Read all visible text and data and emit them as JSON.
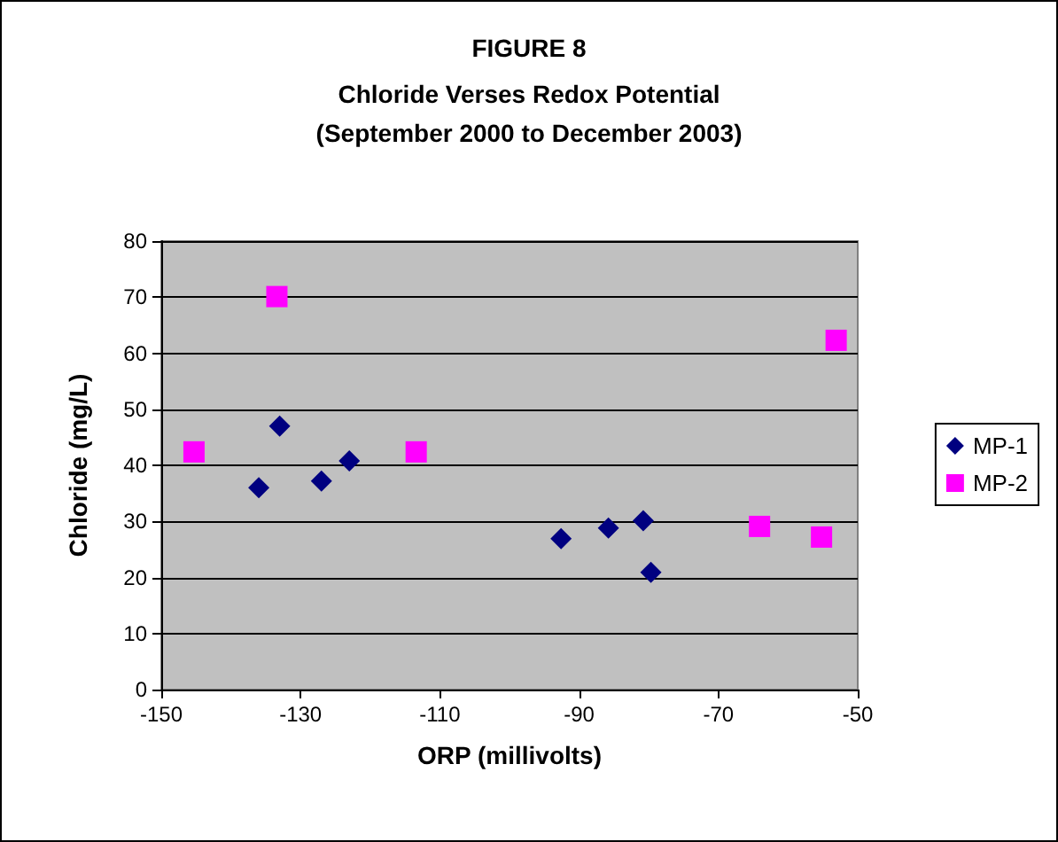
{
  "chart_data": {
    "type": "scatter",
    "title": "FIGURE 8",
    "subtitle": "Chloride Verses Redox Potential\n(September 2000 to December 2003)",
    "xlabel": "ORP (millivolts)",
    "ylabel": "Chloride (mg/L)",
    "xlim": [
      -150,
      -50
    ],
    "xticks": [
      -150,
      -130,
      -110,
      -90,
      -70,
      -50
    ],
    "ylim": [
      0,
      80
    ],
    "yticks": [
      0,
      10,
      20,
      30,
      40,
      50,
      60,
      70,
      80
    ],
    "grid": "y",
    "legend": "right",
    "series": [
      {
        "name": "MP-1",
        "color": "#000080",
        "marker": "diamond",
        "x": [
          -136,
          -133,
          -127,
          -123,
          -92.6,
          -85.8,
          -80.8,
          -79.7
        ],
        "values": [
          36,
          47,
          37.2,
          40.8,
          26.9,
          28.8,
          30.1,
          20.9
        ]
      },
      {
        "name": "MP-2",
        "color": "#ff00ff",
        "marker": "square",
        "x": [
          -145.3,
          -133.4,
          -113.4,
          -64.1,
          -55.2,
          -53.1
        ],
        "values": [
          42.4,
          70.1,
          42.4,
          29.1,
          27.2,
          62.3
        ]
      }
    ]
  }
}
